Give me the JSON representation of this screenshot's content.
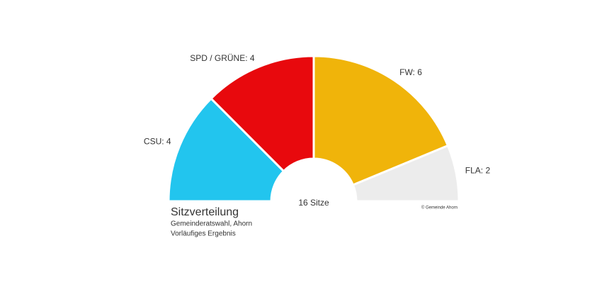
{
  "chart_data": {
    "type": "semicircle",
    "title": "Sitzverteilung",
    "subtitle": [
      "Gemeinderatswahl, Ahorn",
      "Vorläufiges Ergebnis"
    ],
    "center_label": "16 Sitze",
    "credit": "© Gemeinde Ahorn",
    "values": [
      4,
      4,
      6,
      2
    ],
    "value_labels": [
      "CSU: 4",
      "SPD / GRÜNE: 4",
      "FW: 6",
      "FLA: 2"
    ],
    "colors": [
      "#22c5ee",
      "#e8090d",
      "#f0b40a",
      "#ececec"
    ]
  }
}
